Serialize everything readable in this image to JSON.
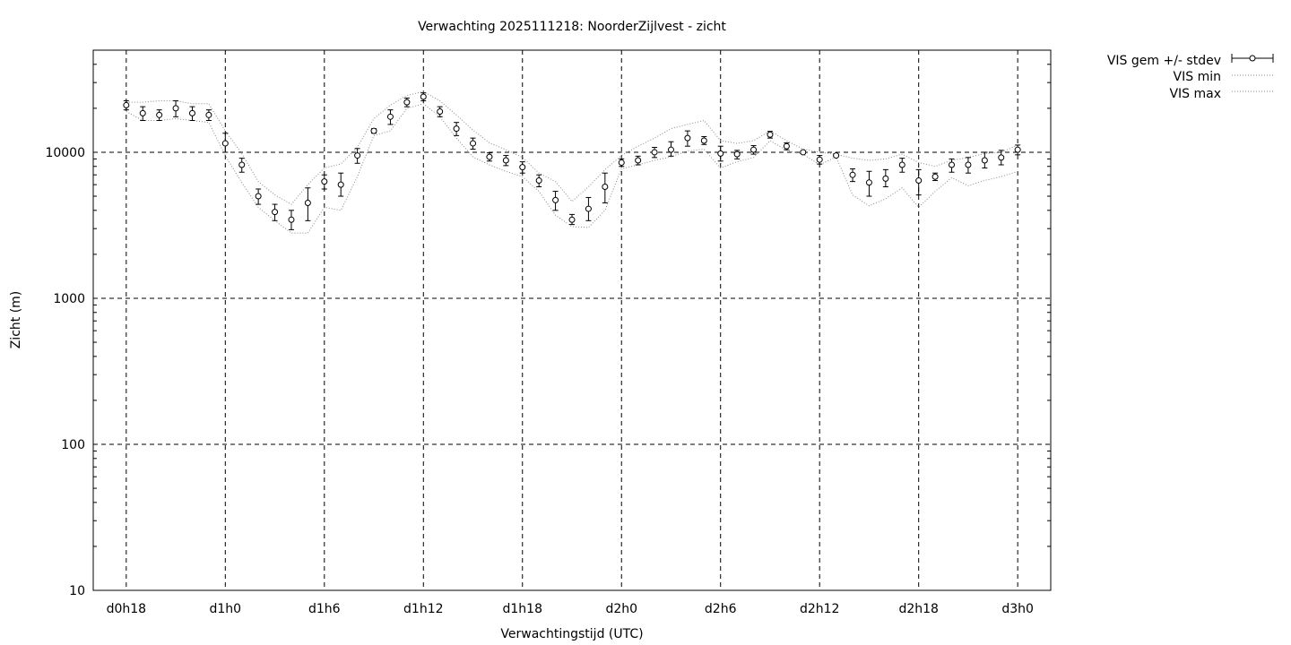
{
  "chart_data": {
    "type": "scatter",
    "title": "Verwachting 2025111218: NoorderZijlvest - zicht",
    "xlabel": "Verwachtingstijd (UTC)",
    "ylabel": "Zicht (m)",
    "y_scale": "log",
    "ylim": [
      10,
      50000
    ],
    "xlim_hours": [
      16,
      74
    ],
    "x_unit": "forecast hour",
    "x_ticks": [
      {
        "label": "d0h18",
        "hour": 18
      },
      {
        "label": "d1h0",
        "hour": 24
      },
      {
        "label": "d1h6",
        "hour": 30
      },
      {
        "label": "d1h12",
        "hour": 36
      },
      {
        "label": "d1h18",
        "hour": 42
      },
      {
        "label": "d2h0",
        "hour": 48
      },
      {
        "label": "d2h6",
        "hour": 54
      },
      {
        "label": "d2h12",
        "hour": 60
      },
      {
        "label": "d2h18",
        "hour": 66
      },
      {
        "label": "d3h0",
        "hour": 72
      }
    ],
    "y_ticks": [
      {
        "label": "10",
        "value": 10
      },
      {
        "label": "100",
        "value": 100
      },
      {
        "label": "1000",
        "value": 1000
      },
      {
        "label": "10000",
        "value": 10000
      }
    ],
    "grid": true,
    "legend_position": "outside-top-right",
    "series": [
      {
        "name": "VIS gem +/- stdev",
        "style": "errorbars",
        "x": [
          18,
          19,
          20,
          21,
          22,
          23,
          24,
          25,
          26,
          27,
          28,
          29,
          30,
          31,
          32,
          33,
          34,
          35,
          36,
          37,
          38,
          39,
          40,
          41,
          42,
          43,
          44,
          45,
          46,
          47,
          48,
          49,
          50,
          51,
          52,
          53,
          54,
          55,
          56,
          57,
          58,
          59,
          60,
          61,
          62,
          63,
          64,
          65,
          66,
          67,
          68,
          69,
          70,
          71,
          72
        ],
        "mean": [
          21000,
          18500,
          18000,
          20000,
          18500,
          18000,
          11500,
          8200,
          5000,
          3900,
          3450,
          4500,
          6300,
          6000,
          9500,
          14000,
          17500,
          22000,
          24000,
          19000,
          14500,
          11500,
          9300,
          8800,
          7900,
          6400,
          4700,
          3450,
          4100,
          5800,
          8500,
          8800,
          10000,
          10400,
          12500,
          12000,
          9800,
          9700,
          10400,
          13200,
          11000,
          10000,
          8900,
          9500,
          7000,
          6200,
          6600,
          8200,
          6400,
          6800,
          8200,
          8200,
          8800,
          9200,
          10400
        ],
        "lower": [
          19500,
          16500,
          16500,
          17500,
          16500,
          16500,
          10000,
          7300,
          4400,
          3400,
          2950,
          3400,
          5600,
          5000,
          8400,
          13500,
          15500,
          20500,
          22500,
          17500,
          13000,
          10500,
          8700,
          8100,
          7200,
          5800,
          4000,
          3200,
          3400,
          4500,
          8000,
          8200,
          9200,
          9400,
          11000,
          11300,
          8700,
          9000,
          9700,
          12500,
          10400,
          9800,
          8300,
          9300,
          6300,
          5000,
          5800,
          7300,
          5100,
          6400,
          7300,
          7200,
          7800,
          8200,
          9600
        ],
        "upper": [
          22500,
          20500,
          19500,
          22500,
          20500,
          19500,
          13500,
          9100,
          5600,
          4400,
          4000,
          5700,
          7000,
          7200,
          10600,
          14500,
          19500,
          23500,
          25500,
          20500,
          16000,
          12500,
          9900,
          9500,
          8600,
          7000,
          5400,
          3750,
          4900,
          7200,
          9000,
          9400,
          10800,
          11800,
          14000,
          12800,
          11000,
          10300,
          11100,
          13900,
          11600,
          10200,
          9500,
          9700,
          7700,
          7400,
          7600,
          9100,
          7600,
          7200,
          9000,
          9200,
          10000,
          10300,
          11200
        ]
      },
      {
        "name": "VIS min",
        "style": "dotted",
        "x": [
          18,
          19,
          20,
          21,
          22,
          23,
          24,
          25,
          26,
          27,
          28,
          29,
          30,
          31,
          32,
          33,
          34,
          35,
          36,
          37,
          38,
          39,
          40,
          41,
          42,
          43,
          44,
          45,
          46,
          47,
          48,
          49,
          50,
          51,
          52,
          53,
          54,
          55,
          56,
          57,
          58,
          59,
          60,
          61,
          62,
          63,
          64,
          65,
          66,
          67,
          68,
          69,
          70,
          71,
          72
        ],
        "values": [
          19000,
          16500,
          16500,
          17000,
          16500,
          16000,
          9500,
          6200,
          4200,
          3400,
          2800,
          2800,
          4200,
          4000,
          6800,
          13000,
          14000,
          20000,
          21500,
          17500,
          12500,
          9300,
          8200,
          7400,
          6800,
          5400,
          3700,
          3100,
          3050,
          4000,
          7700,
          8200,
          8800,
          9300,
          10200,
          10500,
          7800,
          8600,
          9200,
          12000,
          10300,
          9700,
          8200,
          9300,
          5100,
          4300,
          4800,
          5700,
          4200,
          5400,
          6700,
          5900,
          6400,
          6800,
          7400
        ]
      },
      {
        "name": "VIS max",
        "style": "dotted",
        "x": [
          18,
          19,
          20,
          21,
          22,
          23,
          24,
          25,
          26,
          27,
          28,
          29,
          30,
          31,
          32,
          33,
          34,
          35,
          36,
          37,
          38,
          39,
          40,
          41,
          42,
          43,
          44,
          45,
          46,
          47,
          48,
          49,
          50,
          51,
          52,
          53,
          54,
          55,
          56,
          57,
          58,
          59,
          60,
          61,
          62,
          63,
          64,
          65,
          66,
          67,
          68,
          69,
          70,
          71,
          72
        ],
        "values": [
          22000,
          22000,
          22500,
          22500,
          21500,
          21500,
          14000,
          9800,
          6300,
          5100,
          4400,
          6000,
          7800,
          8300,
          10800,
          17000,
          21000,
          24500,
          26000,
          22500,
          18000,
          14200,
          11600,
          10400,
          9200,
          7200,
          6300,
          4600,
          5800,
          7600,
          9500,
          11000,
          12500,
          14500,
          15500,
          16500,
          12000,
          11500,
          12000,
          14000,
          12000,
          10500,
          10000,
          9700,
          9100,
          8800,
          9000,
          9700,
          8500,
          8000,
          8800,
          9200,
          9800,
          10000,
          11200
        ]
      }
    ]
  }
}
